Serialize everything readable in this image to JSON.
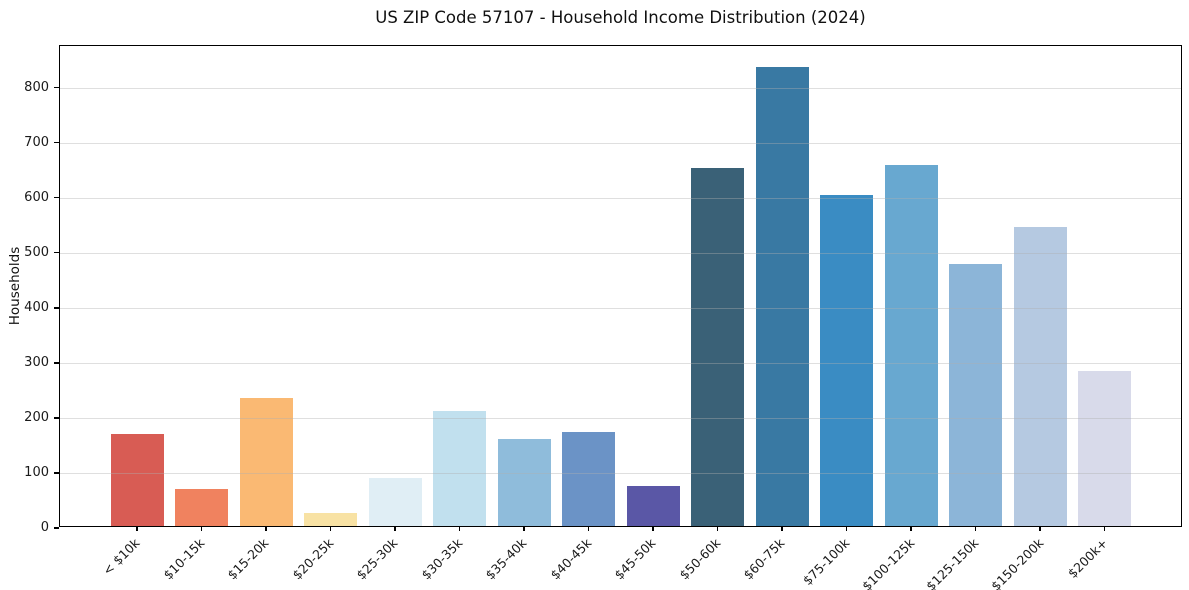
{
  "chart_data": {
    "type": "bar",
    "title": "US ZIP Code 57107 - Household Income Distribution (2024)",
    "xlabel": "",
    "ylabel": "Households",
    "categories": [
      "< $10k",
      "$10-15k",
      "$15-20k",
      "$20-25k",
      "$25-30k",
      "$30-35k",
      "$35-40k",
      "$40-45k",
      "$45-50k",
      "$50-60k",
      "$60-75k",
      "$75-100k",
      "$100-125k",
      "$125-150k",
      "$150-200k",
      "$200k+"
    ],
    "values": [
      167,
      68,
      233,
      24,
      87,
      209,
      158,
      171,
      73,
      651,
      834,
      602,
      656,
      476,
      543,
      282
    ],
    "bar_colors": [
      "#d85c54",
      "#f0825f",
      "#fab973",
      "#f8e2a4",
      "#e0eef5",
      "#c1e0ee",
      "#8fbcdb",
      "#6b93c6",
      "#5a57a6",
      "#3a6177",
      "#3979a3",
      "#3a8cc3",
      "#68a8d0",
      "#8cb5d8",
      "#b5c9e1",
      "#d8daea"
    ],
    "yticks": [
      0,
      100,
      200,
      300,
      400,
      500,
      600,
      700,
      800
    ],
    "ylim": [
      0,
      876
    ],
    "grid": "horizontal-above-bars",
    "gridline_color": "#b0b0b0",
    "axis_color": "#000000",
    "tick_label_color": "#1a1a1a",
    "legend": "none",
    "x_tick_rotation_deg": 45
  }
}
